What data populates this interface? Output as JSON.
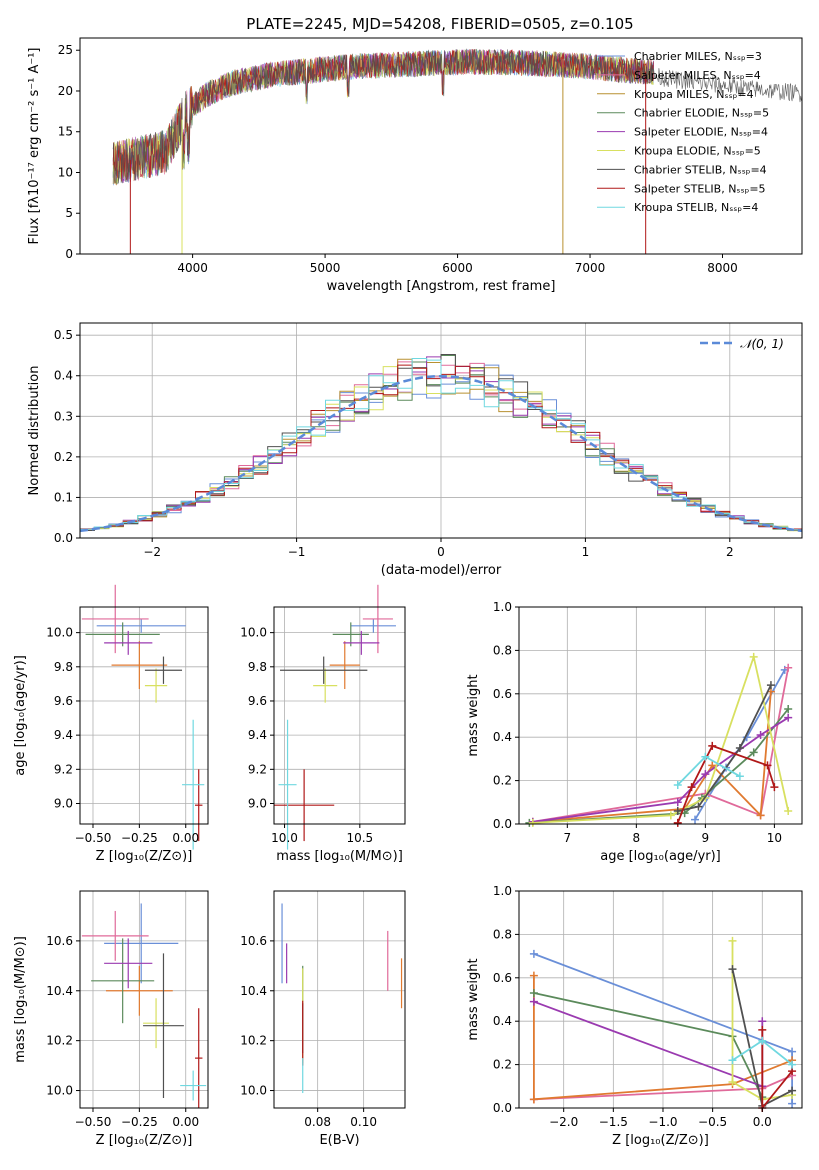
{
  "chart_data": [
    {
      "type": "line",
      "title": "PLATE=2245, MJD=54208, FIBERID=0505, z=0.105",
      "xlabel": "wavelength [Angstrom, rest frame]",
      "ylabel": "Flux [fλ10⁻¹⁷ erg cm⁻² s⁻¹ A⁻¹]",
      "xlim": [
        3150,
        8600
      ],
      "ylim": [
        0,
        26.5
      ],
      "xticks": [
        4000,
        5000,
        6000,
        7000,
        8000
      ],
      "yticks": [
        0,
        5,
        10,
        15,
        20,
        25
      ],
      "grid": false,
      "legend_position": "right",
      "spectrum_continuum": {
        "x": [
          3400,
          3600,
          3800,
          3950,
          4100,
          4300,
          4600,
          4900,
          5200,
          5500,
          5800,
          6100,
          6400,
          6700,
          7000,
          7300,
          7500
        ],
        "y": [
          11.0,
          11.8,
          12.5,
          17.5,
          19.5,
          21.0,
          22.0,
          22.5,
          23.0,
          23.2,
          23.4,
          23.6,
          23.5,
          23.3,
          23.0,
          22.5,
          22.3
        ]
      },
      "spectrum_tail": {
        "x": [
          7430,
          7600,
          7800,
          8000,
          8200,
          8400,
          8600
        ],
        "y": [
          22.0,
          21.5,
          21.0,
          20.7,
          20.3,
          20.0,
          19.7
        ]
      },
      "series": [
        {
          "name": "Chabrier MILES, N_SSP=3",
          "color": "#6a8fd8"
        },
        {
          "name": "Salpeter MILES, N_SSP=4",
          "color": "#e06a9a"
        },
        {
          "name": "Kroupa MILES, N_SSP=4",
          "color": "#b89030"
        },
        {
          "name": "Chabrier ELODIE, N_SSP=5",
          "color": "#5b8a5b"
        },
        {
          "name": "Salpeter ELODIE, N_SSP=4",
          "color": "#9a3ab0"
        },
        {
          "name": "Kroupa ELODIE, N_SSP=5",
          "color": "#d8e060"
        },
        {
          "name": "Chabrier STELIB, N_SSP=4",
          "color": "#505050"
        },
        {
          "name": "Salpeter STELIB, N_SSP=5",
          "color": "#b01818"
        },
        {
          "name": "Kroupa STELIB, N_SSP=4",
          "color": "#70d8e0"
        }
      ]
    },
    {
      "type": "line",
      "xlabel": "(data-model)/error",
      "ylabel": "Normed distribution",
      "xlim": [
        -2.5,
        2.5
      ],
      "ylim": [
        0,
        0.53
      ],
      "xticks": [
        -2,
        -1,
        0,
        1,
        2
      ],
      "yticks": [
        0.0,
        0.1,
        0.2,
        0.3,
        0.4,
        0.5
      ],
      "grid": true,
      "legend_position": "top-right",
      "legend_label": "𝒩(0, 1)",
      "normal_curve_color": "#5b8ad8"
    },
    {
      "type": "scatter",
      "xlabel": "Z [log₁₀(Z/Z⊙)]",
      "ylabel": "age  [log₁₀(age/yr)]",
      "xlim": [
        -0.57,
        0.12
      ],
      "ylim": [
        8.88,
        10.15
      ],
      "xticks": [
        -0.5,
        -0.25,
        0.0
      ],
      "yticks": [
        9.0,
        9.2,
        9.4,
        9.6,
        9.8,
        10.0
      ],
      "grid": true,
      "points": [
        {
          "x": -0.24,
          "y": 10.04,
          "xerr": 0.24,
          "yerr": 0.04,
          "color": "#6a8fd8"
        },
        {
          "x": -0.38,
          "y": 10.08,
          "xerr": 0.18,
          "yerr": 0.2,
          "color": "#e06a9a"
        },
        {
          "x": -0.25,
          "y": 9.81,
          "xerr": 0.15,
          "yerr": 0.14,
          "color": "#e07a30"
        },
        {
          "x": -0.34,
          "y": 9.99,
          "xerr": 0.2,
          "yerr": 0.07,
          "color": "#5b8a5b"
        },
        {
          "x": -0.31,
          "y": 9.94,
          "xerr": 0.13,
          "yerr": 0.07,
          "color": "#9a3ab0"
        },
        {
          "x": -0.16,
          "y": 9.69,
          "xerr": 0.06,
          "yerr": 0.1,
          "color": "#d8e060"
        },
        {
          "x": -0.12,
          "y": 9.78,
          "xerr": 0.1,
          "yerr": 0.08,
          "color": "#505050"
        },
        {
          "x": 0.07,
          "y": 8.99,
          "xerr": 0.02,
          "yerr": 0.21,
          "color": "#b01818"
        },
        {
          "x": 0.04,
          "y": 9.11,
          "xerr": 0.06,
          "yerr": 0.38,
          "color": "#70d8e0"
        }
      ]
    },
    {
      "type": "scatter",
      "xlabel": "mass [log₁₀(M/M⊙)]",
      "yticks": [
        9.0,
        9.2,
        9.4,
        9.6,
        9.8,
        10.0
      ],
      "xlim": [
        9.93,
        10.8
      ],
      "ylim": [
        8.88,
        10.15
      ],
      "xticks": [
        10.0,
        10.5
      ],
      "grid": true,
      "points": [
        {
          "x": 10.59,
          "y": 10.04,
          "xerr": 0.15,
          "yerr": 0.04,
          "color": "#6a8fd8"
        },
        {
          "x": 10.62,
          "y": 10.08,
          "xerr": 0.1,
          "yerr": 0.2,
          "color": "#e06a9a"
        },
        {
          "x": 10.4,
          "y": 9.81,
          "xerr": 0.1,
          "yerr": 0.14,
          "color": "#e07a30"
        },
        {
          "x": 10.44,
          "y": 9.99,
          "xerr": 0.12,
          "yerr": 0.07,
          "color": "#5b8a5b"
        },
        {
          "x": 10.51,
          "y": 9.94,
          "xerr": 0.12,
          "yerr": 0.07,
          "color": "#9a3ab0"
        },
        {
          "x": 10.27,
          "y": 9.69,
          "xerr": 0.08,
          "yerr": 0.1,
          "color": "#d8e060"
        },
        {
          "x": 10.26,
          "y": 9.78,
          "xerr": 0.29,
          "yerr": 0.08,
          "color": "#505050"
        },
        {
          "x": 10.13,
          "y": 8.99,
          "xerr": 0.2,
          "yerr": 0.21,
          "color": "#b01818"
        },
        {
          "x": 10.02,
          "y": 9.11,
          "xerr": 0.06,
          "yerr": 0.38,
          "color": "#70d8e0"
        }
      ]
    },
    {
      "type": "line",
      "xlabel": "age  [log₁₀(age/yr)]",
      "ylabel": "mass weight",
      "xlim": [
        6.3,
        10.4
      ],
      "ylim": [
        0,
        1
      ],
      "xticks": [
        7,
        8,
        9,
        10
      ],
      "yticks": [
        0.0,
        0.2,
        0.4,
        0.6,
        0.8,
        1.0
      ],
      "grid": true,
      "series": [
        {
          "color": "#6a8fd8",
          "x": [
            8.85,
            9.3,
            9.6,
            10.15
          ],
          "y": [
            0.02,
            0.26,
            0.4,
            0.71
          ]
        },
        {
          "color": "#e06a9a",
          "x": [
            6.5,
            9.0,
            9.8,
            10.2
          ],
          "y": [
            0.01,
            0.14,
            0.04,
            0.72
          ]
        },
        {
          "color": "#e07a30",
          "x": [
            6.5,
            8.7,
            9.1,
            9.8,
            9.95
          ],
          "y": [
            0.01,
            0.07,
            0.27,
            0.04,
            0.61
          ]
        },
        {
          "color": "#5b8a5b",
          "x": [
            6.45,
            8.7,
            8.95,
            9.7,
            10.2
          ],
          "y": [
            0.005,
            0.05,
            0.12,
            0.33,
            0.53
          ]
        },
        {
          "color": "#9a3ab0",
          "x": [
            6.5,
            8.6,
            9.0,
            9.8,
            10.2
          ],
          "y": [
            0.01,
            0.1,
            0.23,
            0.41,
            0.49
          ]
        },
        {
          "color": "#d8e060",
          "x": [
            6.5,
            8.5,
            9.0,
            9.7,
            10.2
          ],
          "y": [
            0.005,
            0.04,
            0.12,
            0.77,
            0.06
          ]
        },
        {
          "color": "#505050",
          "x": [
            8.6,
            8.9,
            9.5,
            9.95
          ],
          "y": [
            0.06,
            0.08,
            0.35,
            0.64
          ]
        },
        {
          "color": "#b01818",
          "x": [
            8.6,
            8.8,
            9.1,
            9.9,
            10.0
          ],
          "y": [
            0.005,
            0.17,
            0.36,
            0.27,
            0.17
          ]
        },
        {
          "color": "#70d8e0",
          "x": [
            8.6,
            9.0,
            9.5
          ],
          "y": [
            0.18,
            0.31,
            0.22
          ]
        }
      ]
    },
    {
      "type": "scatter",
      "xlabel": "Z [log₁₀(Z/Z⊙)]",
      "ylabel": "mass [log₁₀(M/M⊙)]",
      "xlim": [
        -0.57,
        0.12
      ],
      "ylim": [
        9.93,
        10.8
      ],
      "xticks": [
        -0.5,
        -0.25,
        0.0
      ],
      "yticks": [
        10.0,
        10.2,
        10.4,
        10.6
      ],
      "grid": true,
      "points": [
        {
          "x": -0.24,
          "y": 10.59,
          "xerr": 0.2,
          "yerr": 0.16,
          "color": "#6a8fd8"
        },
        {
          "x": -0.38,
          "y": 10.62,
          "xerr": 0.18,
          "yerr": 0.1,
          "color": "#e06a9a"
        },
        {
          "x": -0.25,
          "y": 10.4,
          "xerr": 0.18,
          "yerr": 0.1,
          "color": "#e07a30"
        },
        {
          "x": -0.34,
          "y": 10.44,
          "xerr": 0.17,
          "yerr": 0.17,
          "color": "#5b8a5b"
        },
        {
          "x": -0.31,
          "y": 10.51,
          "xerr": 0.13,
          "yerr": 0.1,
          "color": "#9a3ab0"
        },
        {
          "x": -0.16,
          "y": 10.27,
          "xerr": 0.07,
          "yerr": 0.1,
          "color": "#d8e060"
        },
        {
          "x": -0.12,
          "y": 10.26,
          "xerr": 0.11,
          "yerr": 0.29,
          "color": "#505050"
        },
        {
          "x": 0.07,
          "y": 10.13,
          "xerr": 0.02,
          "yerr": 0.2,
          "color": "#b01818"
        },
        {
          "x": 0.04,
          "y": 10.02,
          "xerr": 0.07,
          "yerr": 0.06,
          "color": "#70d8e0"
        }
      ]
    },
    {
      "type": "scatter",
      "xlabel": "E(B-V)",
      "xlim": [
        0.061,
        0.118
      ],
      "ylim": [
        9.93,
        10.8
      ],
      "xticks": [
        0.08,
        0.1
      ],
      "xtick_labels": [
        "0.08",
        "0.10"
      ],
      "yticks": [
        10.0,
        10.2,
        10.4,
        10.6
      ],
      "grid": true,
      "points": [
        {
          "x": 0.0645,
          "y": 10.59,
          "yerr": 0.16,
          "color": "#6a8fd8"
        },
        {
          "x": 0.1105,
          "y": 10.52,
          "yerr": 0.12,
          "color": "#e06a9a"
        },
        {
          "x": 0.1165,
          "y": 10.43,
          "yerr": 0.1,
          "color": "#e07a30"
        },
        {
          "x": 0.0735,
          "y": 10.43,
          "yerr": 0.07,
          "color": "#5b8a5b"
        },
        {
          "x": 0.0665,
          "y": 10.51,
          "yerr": 0.08,
          "color": "#9a3ab0"
        },
        {
          "x": 0.0735,
          "y": 10.3,
          "yerr": 0.19,
          "color": "#d8e060"
        },
        {
          "x": 0.0735,
          "y": 10.25,
          "yerr": 0.1,
          "color": "#505050"
        },
        {
          "x": 0.0735,
          "y": 10.23,
          "yerr": 0.13,
          "color": "#b01818"
        },
        {
          "x": 0.0735,
          "y": 10.06,
          "yerr": 0.07,
          "color": "#70d8e0"
        }
      ]
    },
    {
      "type": "line",
      "xlabel": "Z [log₁₀(Z/Z⊙)]",
      "ylabel": "mass weight",
      "xlim": [
        -2.45,
        0.4
      ],
      "ylim": [
        0,
        1
      ],
      "xticks": [
        -2.0,
        -1.5,
        -1.0,
        -0.5,
        0.0
      ],
      "xtick_labels": [
        "−2.0",
        "−1.5",
        "−1.0",
        "−0.5",
        "0.0"
      ],
      "yticks": [
        0.0,
        0.2,
        0.4,
        0.6,
        0.8,
        1.0
      ],
      "grid": true,
      "series": [
        {
          "color": "#6a8fd8",
          "x": [
            -2.3,
            0.3,
            0.3
          ],
          "y": [
            0.71,
            0.26,
            0.02
          ]
        },
        {
          "color": "#e06a9a",
          "x": [
            -2.3,
            0.0,
            0.3
          ],
          "y": [
            0.04,
            0.09,
            0.15
          ]
        },
        {
          "color": "#e07a30",
          "x": [
            -2.3,
            -2.3,
            -0.3,
            0.3
          ],
          "y": [
            0.61,
            0.04,
            0.11,
            0.22
          ]
        },
        {
          "color": "#5b8a5b",
          "x": [
            -2.3,
            -0.3,
            0.0
          ],
          "y": [
            0.53,
            0.33,
            0.05
          ]
        },
        {
          "color": "#9a3ab0",
          "x": [
            -2.3,
            0.0,
            0.0
          ],
          "y": [
            0.49,
            0.1,
            0.4
          ]
        },
        {
          "color": "#d8e060",
          "x": [
            -0.3,
            -0.3,
            0.0,
            0.3
          ],
          "y": [
            0.77,
            0.12,
            0.04,
            0.06
          ]
        },
        {
          "color": "#505050",
          "x": [
            -0.3,
            0.0,
            0.3
          ],
          "y": [
            0.64,
            0.01,
            0.08
          ]
        },
        {
          "color": "#b01818",
          "x": [
            0.0,
            0.0,
            0.3
          ],
          "y": [
            0.36,
            0.0,
            0.17
          ]
        },
        {
          "color": "#70d8e0",
          "x": [
            -0.3,
            0.0,
            0.3
          ],
          "y": [
            0.22,
            0.31,
            0.2
          ]
        }
      ]
    }
  ]
}
